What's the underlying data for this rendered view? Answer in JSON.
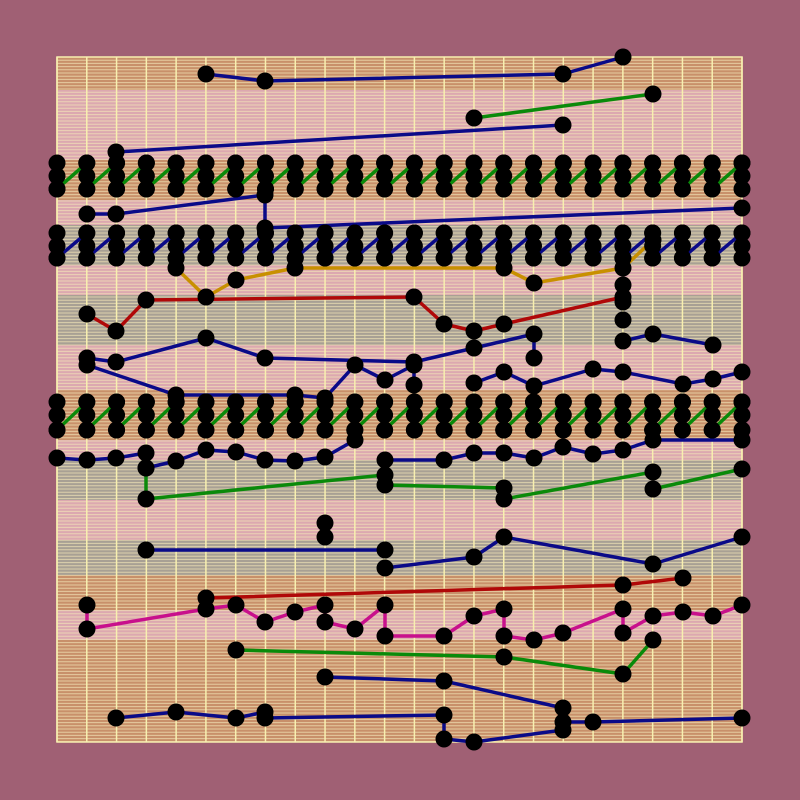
{
  "diagram": {
    "background_color": "#a06074",
    "band_colors": {
      "orange": "#c8906a",
      "pink": "#dca8b0",
      "gray": "#a8a094"
    },
    "stripe_color": "#f4e6b8",
    "gridline_color": "#f8f0b0",
    "node_color": "#000000",
    "edge_colors": {
      "blue": "#0a0a88",
      "green": "#0a8a0a",
      "orange": "#c89000",
      "red": "#b00808",
      "magenta": "#c8108c"
    }
  }
}
